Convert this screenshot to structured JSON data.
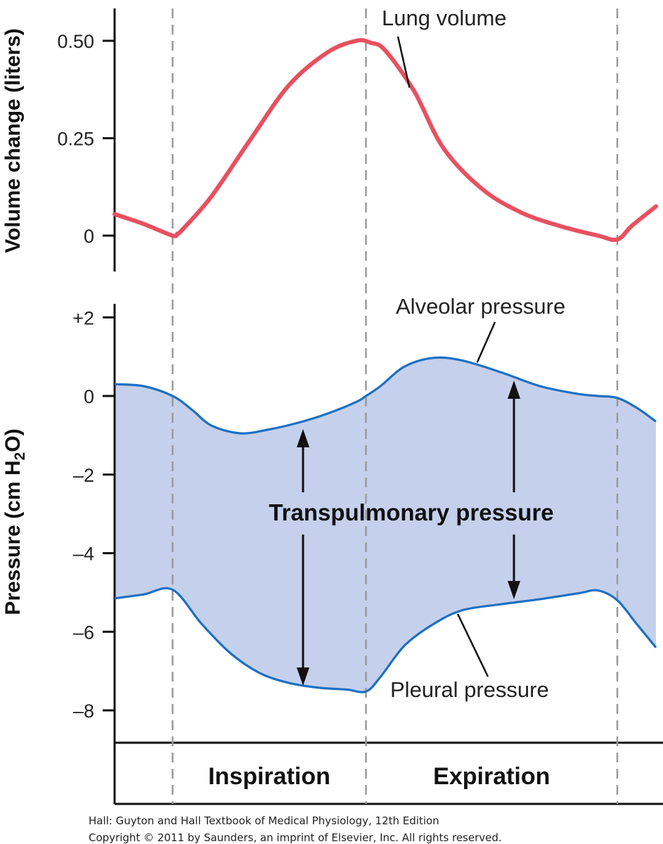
{
  "chart_data": [
    {
      "type": "line",
      "ylabel": "Volume change (liters)",
      "ylim": [
        0,
        0.5
      ],
      "yticks": [
        {
          "value": 0.5,
          "label": "0.50"
        },
        {
          "value": 0.25,
          "label": "0.25"
        },
        {
          "value": 0,
          "label": "0"
        }
      ],
      "x_range": [
        0,
        5.6
      ],
      "series": [
        {
          "name": "Lung volume",
          "color": "#e8505f",
          "points": [
            [
              0,
              0.055
            ],
            [
              0.3,
              0.03
            ],
            [
              0.6,
              0.0
            ],
            [
              0.65,
              0.005
            ],
            [
              0.7,
              0.015
            ],
            [
              1.0,
              0.1
            ],
            [
              1.4,
              0.245
            ],
            [
              1.8,
              0.385
            ],
            [
              2.2,
              0.47
            ],
            [
              2.5,
              0.5
            ],
            [
              2.65,
              0.495
            ],
            [
              2.8,
              0.475
            ],
            [
              3.1,
              0.37
            ],
            [
              3.4,
              0.225
            ],
            [
              3.8,
              0.12
            ],
            [
              4.2,
              0.06
            ],
            [
              4.6,
              0.025
            ],
            [
              5.0,
              0.0
            ],
            [
              5.2,
              -0.01
            ],
            [
              5.35,
              0.025
            ],
            [
              5.6,
              0.075
            ]
          ]
        }
      ],
      "annotations": [
        {
          "text": "Lung volume",
          "target": [
            3.05,
            0.38
          ]
        }
      ]
    },
    {
      "type": "area",
      "ylabel": "Pressure (cm H2O)",
      "ylabel_parts": {
        "main": "Pressure (cm H",
        "sub": "2",
        "end": "O)"
      },
      "ylim": [
        -8,
        2
      ],
      "yticks": [
        {
          "value": 2,
          "label": "+2"
        },
        {
          "value": 0,
          "label": "0"
        },
        {
          "value": -2,
          "label": "–2"
        },
        {
          "value": -4,
          "label": "–4"
        },
        {
          "value": -6,
          "label": "–6"
        },
        {
          "value": -8,
          "label": "–8"
        }
      ],
      "x_range": [
        0,
        5.6
      ],
      "fill_color": "#c5d0ec",
      "series": [
        {
          "name": "Alveolar pressure",
          "color": "#1d70c2",
          "points": [
            [
              0,
              0.3
            ],
            [
              0.3,
              0.25
            ],
            [
              0.6,
              0.0
            ],
            [
              0.8,
              -0.35
            ],
            [
              1.0,
              -0.75
            ],
            [
              1.3,
              -0.95
            ],
            [
              1.6,
              -0.85
            ],
            [
              1.9,
              -0.68
            ],
            [
              2.2,
              -0.45
            ],
            [
              2.5,
              -0.15
            ],
            [
              2.6,
              0.0
            ],
            [
              2.75,
              0.25
            ],
            [
              3.0,
              0.75
            ],
            [
              3.3,
              0.97
            ],
            [
              3.6,
              0.9
            ],
            [
              4.0,
              0.6
            ],
            [
              4.4,
              0.25
            ],
            [
              4.8,
              0.05
            ],
            [
              5.0,
              0.0
            ],
            [
              5.2,
              -0.05
            ],
            [
              5.4,
              -0.3
            ],
            [
              5.6,
              -0.65
            ]
          ]
        },
        {
          "name": "Pleural pressure",
          "color": "#1d70c2",
          "points": [
            [
              0,
              -5.15
            ],
            [
              0.3,
              -5.05
            ],
            [
              0.6,
              -4.93
            ],
            [
              0.9,
              -5.8
            ],
            [
              1.2,
              -6.55
            ],
            [
              1.5,
              -7.05
            ],
            [
              1.8,
              -7.3
            ],
            [
              2.1,
              -7.42
            ],
            [
              2.4,
              -7.47
            ],
            [
              2.6,
              -7.52
            ],
            [
              2.75,
              -7.15
            ],
            [
              3.0,
              -6.35
            ],
            [
              3.3,
              -5.8
            ],
            [
              3.6,
              -5.45
            ],
            [
              4.0,
              -5.3
            ],
            [
              4.4,
              -5.17
            ],
            [
              4.8,
              -5.02
            ],
            [
              5.0,
              -4.95
            ],
            [
              5.2,
              -5.2
            ],
            [
              5.4,
              -5.8
            ],
            [
              5.6,
              -6.4
            ]
          ]
        }
      ],
      "annotations": [
        {
          "text": "Alveolar pressure",
          "target": [
            3.75,
            0.85
          ]
        },
        {
          "text": "Pleural pressure",
          "target": [
            3.55,
            -5.55
          ]
        },
        {
          "text": "Transpulmonary pressure"
        }
      ]
    }
  ],
  "phases": [
    {
      "label": "Inspiration",
      "x_start": 0.6,
      "x_end": 2.6
    },
    {
      "label": "Expiration",
      "x_start": 2.6,
      "x_end": 5.2
    }
  ],
  "credits": [
    "Hall: Guyton and Hall Textbook of Medical Physiology, 12th Edition",
    "Copyright © 2011 by Saunders, an imprint of Elsevier, Inc. All rights reserved."
  ]
}
